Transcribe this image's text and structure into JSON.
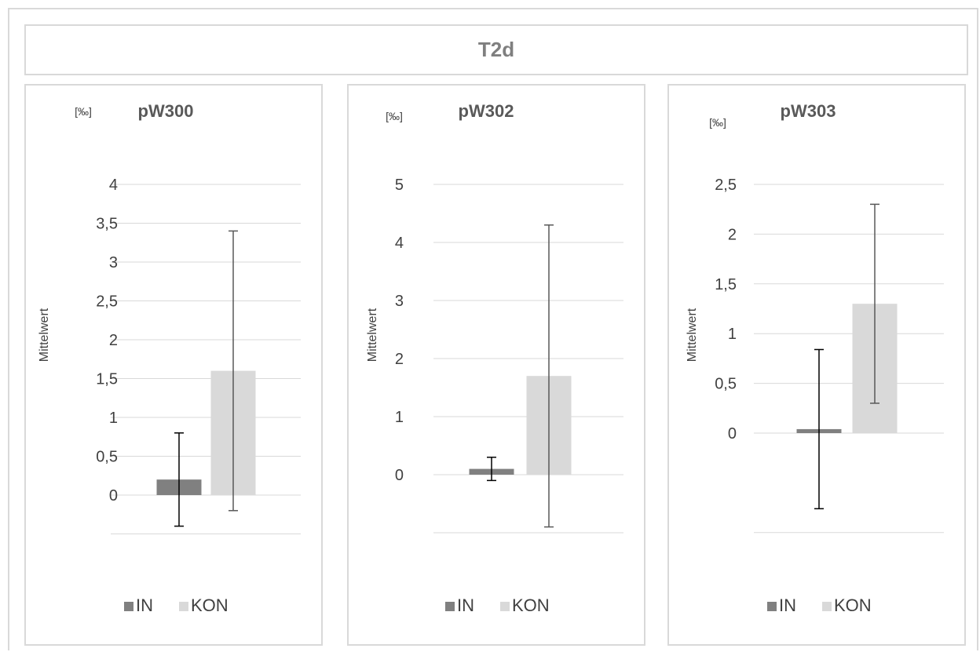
{
  "title": "T2d",
  "colors": {
    "IN": "#808080",
    "KON": "#d9d9d9",
    "grid": "#d9d9d9",
    "err_IN": "#000000",
    "err_KON": "#595959"
  },
  "chart_data": [
    {
      "type": "bar",
      "title": "pW300",
      "unit": "[‰]",
      "ylabel": "Mittelwert",
      "ylim": [
        -0.5,
        4
      ],
      "yticks": [
        4,
        3.5,
        3,
        2.5,
        2,
        1.5,
        1,
        0.5,
        0
      ],
      "ytick_labels": [
        "4",
        "3,5",
        "3",
        "2,5",
        "2",
        "1,5",
        "1",
        "0,5",
        "0"
      ],
      "series": [
        {
          "name": "IN",
          "values": [
            0.2
          ],
          "error_low": [
            -0.4
          ],
          "error_high": [
            0.8
          ]
        },
        {
          "name": "KON",
          "values": [
            1.6
          ],
          "error_low": [
            -0.2
          ],
          "error_high": [
            3.4
          ]
        }
      ],
      "legend": [
        "IN",
        "KON"
      ],
      "legend_position": "bottom"
    },
    {
      "type": "bar",
      "title": "pW302",
      "unit": "[‰]",
      "ylabel": "Mittelwert",
      "ylim": [
        -1,
        5
      ],
      "yticks": [
        5,
        4,
        3,
        2,
        1,
        0
      ],
      "ytick_labels": [
        "5",
        "4",
        "3",
        "2",
        "1",
        "0"
      ],
      "series": [
        {
          "name": "IN",
          "values": [
            0.1
          ],
          "error_low": [
            -0.1
          ],
          "error_high": [
            0.3
          ]
        },
        {
          "name": "KON",
          "values": [
            1.7
          ],
          "error_low": [
            -0.9
          ],
          "error_high": [
            4.3
          ]
        }
      ],
      "legend": [
        "IN",
        "KON"
      ],
      "legend_position": "bottom"
    },
    {
      "type": "bar",
      "title": "pW303",
      "unit": "[‰]",
      "ylabel": "Mittelwert",
      "ylim": [
        -1,
        2.5
      ],
      "yticks": [
        2.5,
        2,
        1.5,
        1,
        0.5,
        0
      ],
      "ytick_labels": [
        "2,5",
        "2",
        "1,5",
        "1",
        "0,5",
        "0"
      ],
      "series": [
        {
          "name": "IN",
          "values": [
            0.04
          ],
          "error_low": [
            -0.76
          ],
          "error_high": [
            0.84
          ]
        },
        {
          "name": "KON",
          "values": [
            1.3
          ],
          "error_low": [
            0.3
          ],
          "error_high": [
            2.3
          ]
        }
      ],
      "legend": [
        "IN",
        "KON"
      ],
      "legend_position": "bottom"
    }
  ]
}
